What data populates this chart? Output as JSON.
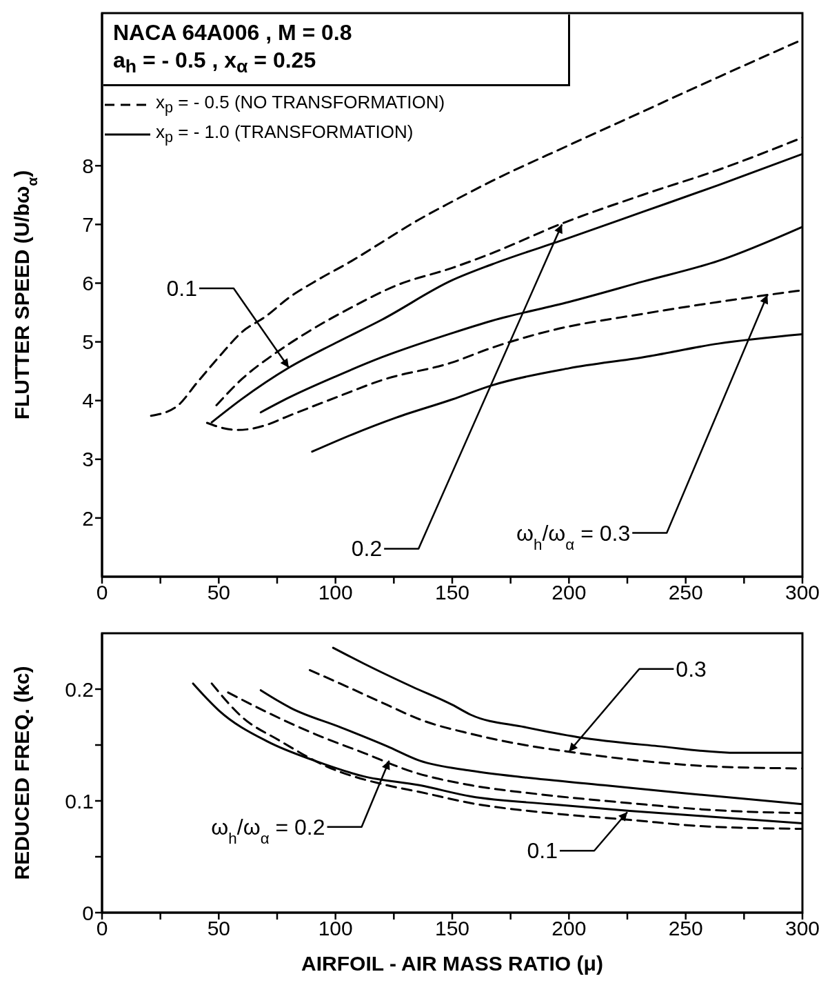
{
  "chart_data": [
    {
      "type": "line",
      "title": "NACA 64A006 , M = 0.8",
      "subtitle": "a$_{h}$ = - 0.5 , x$_{α}$ = 0.25",
      "ylabel": "FLUTTER SPEED (U/bω$_{α}$)",
      "legend": "top left",
      "xlim": [
        0,
        300
      ],
      "xticks": [
        0,
        {
          "value": 25,
          "label": null
        },
        50,
        {
          "value": 75,
          "label": null
        },
        100,
        {
          "value": 125,
          "label": null
        },
        150,
        {
          "value": 175,
          "label": null
        },
        200,
        {
          "value": 225,
          "label": null
        },
        250,
        {
          "value": 275,
          "label": null
        },
        300
      ],
      "ylim": [
        1,
        10.6
      ],
      "yticks": [
        2,
        3,
        4,
        5,
        6,
        7,
        8
      ],
      "series": [
        {
          "name": "x$_{p}$ = - 0.5 (NO TRANSFORMATION)",
          "color": "#000000",
          "line_style": "dashed",
          "x": [
            21,
            32,
            41,
            50,
            60,
            70,
            80,
            93,
            107,
            120,
            133,
            150,
            167,
            200,
            232,
            264,
            300
          ],
          "values": [
            3.74,
            3.9,
            4.32,
            4.74,
            5.17,
            5.43,
            5.75,
            6.07,
            6.38,
            6.7,
            7.02,
            7.39,
            7.74,
            8.35,
            8.93,
            9.51,
            10.15
          ]
        },
        {
          "name": "x$_{p}$ = - 1.0 (TRANSFORMATION)",
          "color": "#000000",
          "line_style": "solid",
          "x": [
            47,
            60,
            80,
            100,
            120,
            150,
            167,
            200,
            232,
            264,
            300
          ],
          "values": [
            3.63,
            4.03,
            4.56,
            4.98,
            5.38,
            6.05,
            6.32,
            6.77,
            7.22,
            7.67,
            8.2
          ]
        },
        {
          "color": "#000000",
          "line_style": "dashed",
          "x": [
            49,
            60,
            74,
            87,
            107,
            126,
            150,
            167,
            196,
            232,
            264,
            300
          ],
          "values": [
            3.92,
            4.37,
            4.8,
            5.14,
            5.59,
            5.96,
            6.26,
            6.51,
            7.0,
            7.51,
            7.93,
            8.48
          ]
        },
        {
          "color": "#000000",
          "line_style": "solid",
          "x": [
            68,
            80,
            100,
            120,
            150,
            167,
            200,
            232,
            264,
            300
          ],
          "values": [
            3.8,
            4.05,
            4.41,
            4.74,
            5.15,
            5.36,
            5.68,
            6.03,
            6.38,
            6.96
          ]
        },
        {
          "color": "#000000",
          "line_style": "dashed",
          "x": [
            45,
            52,
            58,
            64,
            70,
            80,
            100,
            120,
            150,
            167,
            192,
            232,
            264,
            300
          ],
          "values": [
            3.62,
            3.53,
            3.5,
            3.52,
            3.58,
            3.74,
            4.05,
            4.35,
            4.65,
            4.9,
            5.19,
            5.48,
            5.68,
            5.88
          ]
        },
        {
          "color": "#000000",
          "line_style": "solid",
          "x": [
            90,
            107,
            126,
            150,
            167,
            200,
            232,
            264,
            300
          ],
          "values": [
            3.13,
            3.42,
            3.71,
            4.02,
            4.26,
            4.55,
            4.74,
            4.97,
            5.13
          ]
        }
      ],
      "annotations": [
        {
          "text": "0.1",
          "x": 80,
          "y": 4.56
        },
        {
          "text": "0.2",
          "x": 197,
          "y": 7.0
        },
        {
          "text": "ω$_{h}$/ω$_{α}$ = 0.3",
          "x": 285,
          "y": 5.8
        }
      ]
    },
    {
      "type": "line",
      "xlabel": "AIRFOIL - AIR MASS RATIO (μ)",
      "ylabel": "REDUCED FREQ. (kc)",
      "xlim": [
        0,
        300
      ],
      "xticks": [
        0,
        {
          "value": 25,
          "label": null
        },
        50,
        {
          "value": 75,
          "label": null
        },
        100,
        {
          "value": 125,
          "label": null
        },
        150,
        {
          "value": 175,
          "label": null
        },
        200,
        {
          "value": 225,
          "label": null
        },
        250,
        {
          "value": 275,
          "label": null
        },
        300
      ],
      "ylim": [
        0,
        0.25
      ],
      "yticks": [
        0,
        {
          "value": 0.05,
          "label": null
        },
        0.1,
        {
          "value": 0.15,
          "label": null
        },
        0.2
      ],
      "series": [
        {
          "color": "#000000",
          "line_style": "solid",
          "x": [
            99,
            112,
            133,
            150,
            158,
            181,
            204,
            238,
            272,
            300
          ],
          "values": [
            0.237,
            0.223,
            0.202,
            0.186,
            0.177,
            0.166,
            0.157,
            0.149,
            0.143,
            0.143
          ]
        },
        {
          "color": "#000000",
          "line_style": "dashed",
          "x": [
            89,
            102,
            122,
            136,
            158,
            181,
            200,
            226,
            260,
            300
          ],
          "values": [
            0.217,
            0.205,
            0.186,
            0.173,
            0.16,
            0.15,
            0.144,
            0.137,
            0.131,
            0.129
          ]
        },
        {
          "color": "#000000",
          "line_style": "solid",
          "x": [
            68,
            81,
            102,
            122,
            136,
            158,
            181,
            215,
            249,
            300
          ],
          "values": [
            0.199,
            0.183,
            0.166,
            0.149,
            0.136,
            0.127,
            0.121,
            0.114,
            0.107,
            0.097
          ]
        },
        {
          "color": "#000000",
          "line_style": "dashed",
          "x": [
            54,
            71,
            91,
            112,
            133,
            158,
            187,
            226,
            260,
            300
          ],
          "values": [
            0.197,
            0.179,
            0.16,
            0.143,
            0.126,
            0.114,
            0.106,
            0.098,
            0.092,
            0.089
          ]
        },
        {
          "color": "#000000",
          "line_style": "solid",
          "x": [
            39,
            50,
            71,
            91,
            112,
            136,
            158,
            192,
            226,
            260,
            300
          ],
          "values": [
            0.205,
            0.181,
            0.153,
            0.136,
            0.122,
            0.114,
            0.104,
            0.097,
            0.091,
            0.086,
            0.08
          ]
        },
        {
          "color": "#000000",
          "line_style": "dashed",
          "x": [
            47,
            60,
            76,
            96,
            122,
            136,
            158,
            192,
            226,
            260,
            300
          ],
          "values": [
            0.205,
            0.175,
            0.154,
            0.131,
            0.114,
            0.108,
            0.098,
            0.089,
            0.083,
            0.077,
            0.075
          ]
        }
      ],
      "annotations": [
        {
          "text": "0.3",
          "x": 200,
          "y": 0.144
        },
        {
          "text": "ω$_{h}$/ω$_{α}$ = 0.2",
          "x": 123,
          "y": 0.136
        },
        {
          "text": "0.1",
          "x": 225,
          "y": 0.09
        }
      ]
    }
  ]
}
